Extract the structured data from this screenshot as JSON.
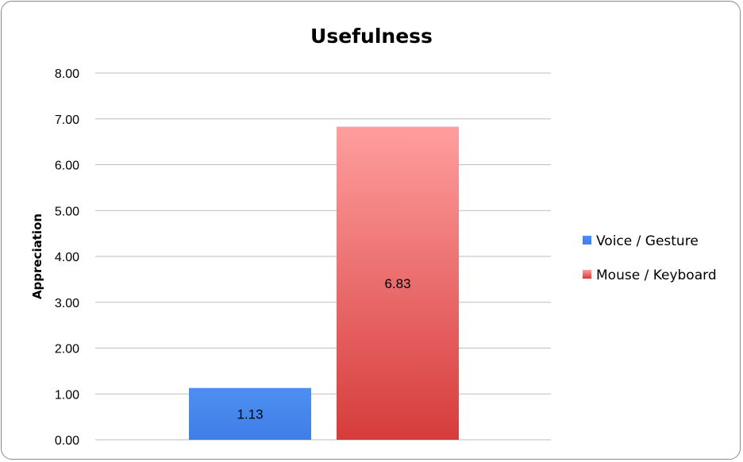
{
  "chart_data": {
    "type": "bar",
    "title": "Usefulness",
    "xlabel": "",
    "ylabel": "Appreciation",
    "ylim": [
      0,
      8
    ],
    "yticks": [
      "0.00",
      "1.00",
      "2.00",
      "3.00",
      "4.00",
      "5.00",
      "6.00",
      "7.00",
      "8.00"
    ],
    "grid": true,
    "legend_position": "right",
    "series": [
      {
        "name": "Voice / Gesture",
        "values": [
          1.13
        ],
        "label": "1.13",
        "color": "#4a86e8"
      },
      {
        "name": "Mouse / Keyboard",
        "values": [
          6.83
        ],
        "label": "6.83",
        "color": "#e06060"
      }
    ]
  }
}
